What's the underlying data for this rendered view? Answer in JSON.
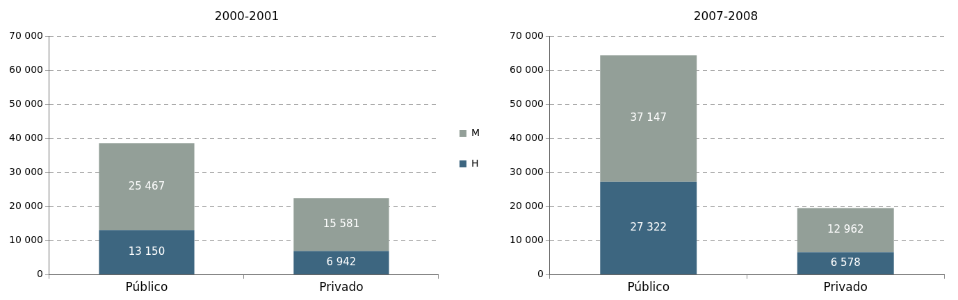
{
  "chart_data": [
    {
      "type": "bar",
      "title": "2000-2001",
      "categories": [
        "Público",
        "Privado"
      ],
      "stacked": true,
      "grid": "y",
      "legend": "right",
      "ylim": [
        0,
        70000
      ],
      "yticks": [
        0,
        {
          "value": 10000,
          "label": "10 000"
        },
        {
          "value": 20000,
          "label": "20 000"
        },
        {
          "value": 30000,
          "label": "30 000"
        },
        {
          "value": 40000,
          "label": "40 000"
        },
        {
          "value": 50000,
          "label": "50 000"
        },
        {
          "value": 60000,
          "label": "60 000"
        },
        {
          "value": 70000,
          "label": "70 000"
        }
      ],
      "series": [
        {
          "name": "H",
          "color": "#3d6680",
          "values": [
            13150,
            6942
          ],
          "value_labels": [
            "13 150",
            "6 942"
          ]
        },
        {
          "name": "M",
          "color": "#939f98",
          "values": [
            25467,
            15581
          ],
          "value_labels": [
            "25 467",
            "15 581"
          ]
        }
      ]
    },
    {
      "type": "bar",
      "title": "2007-2008",
      "categories": [
        "Público",
        "Privado"
      ],
      "stacked": true,
      "grid": "y",
      "ylim": [
        0,
        70000
      ],
      "yticks": [
        0,
        {
          "value": 10000,
          "label": "10 000"
        },
        {
          "value": 20000,
          "label": "20 000"
        },
        {
          "value": 30000,
          "label": "30 000"
        },
        {
          "value": 40000,
          "label": "40 000"
        },
        {
          "value": 50000,
          "label": "50 000"
        },
        {
          "value": 60000,
          "label": "60 000"
        },
        {
          "value": 70000,
          "label": "70 000"
        }
      ],
      "series": [
        {
          "color": "#3d6680",
          "values": [
            27322,
            6578
          ],
          "value_labels": [
            "27 322",
            "6 578"
          ]
        },
        {
          "color": "#939f98",
          "values": [
            37147,
            12962
          ],
          "value_labels": [
            "37 147",
            "12 962"
          ]
        }
      ]
    }
  ]
}
